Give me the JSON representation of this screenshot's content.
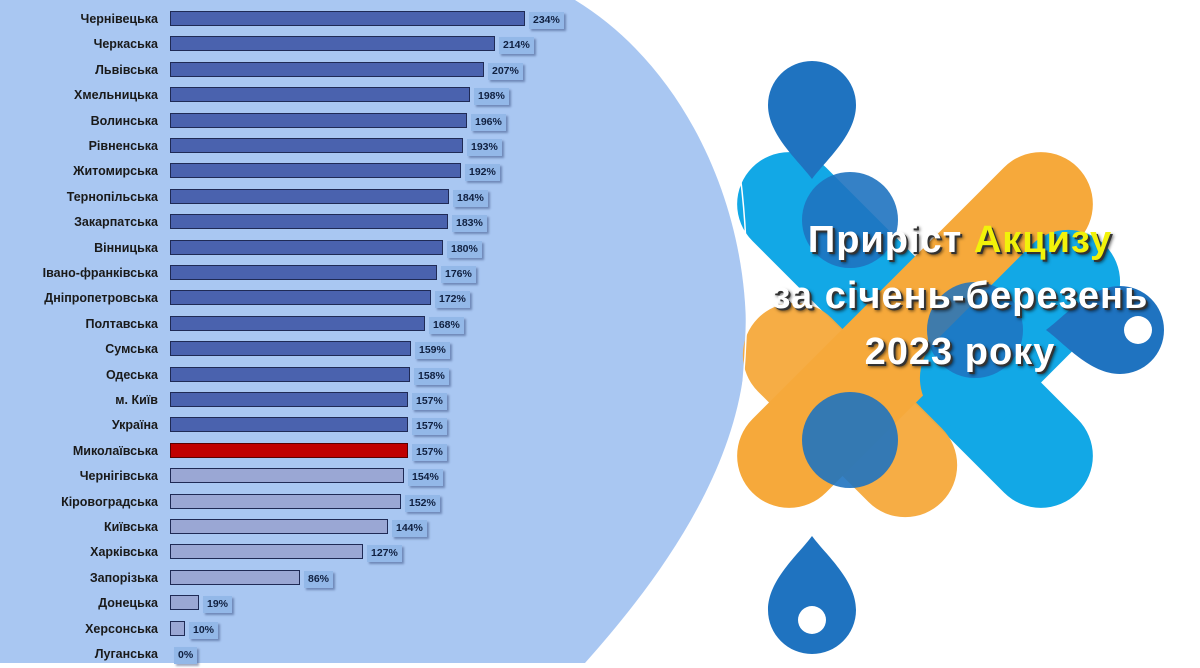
{
  "title": {
    "line1_prefix": "Приріст ",
    "line1_highlight": "Акцизу",
    "line2": "за січень-березень",
    "line3": "2023 року"
  },
  "colors": {
    "bar_above_avg": "#4a62ae",
    "bar_below_avg": "#9aa7d4",
    "bar_highlight": "#c00000",
    "label_box": "#93b8e8",
    "panel_bg": "#a9c7f2",
    "title_highlight": "#f2f20a",
    "logo_dark_blue": "#1f73c0",
    "logo_light_blue": "#12a8e6",
    "logo_orange": "#f6a93b"
  },
  "chart_data": {
    "type": "bar",
    "orientation": "horizontal",
    "title": "Приріст Акцизу за січень-березень 2023 року",
    "xlabel": "",
    "ylabel": "",
    "value_suffix": "%",
    "grid": false,
    "legend": null,
    "highlight": "Миколаївська",
    "categories": [
      "Чернівецька",
      "Черкаська",
      "Львівська",
      "Хмельницька",
      "Волинська",
      "Рівненська",
      "Житомирська",
      "Тернопільська",
      "Закарпатська",
      "Вінницька",
      "Івано-франківська",
      "Дніпропетровська",
      "Полтавська",
      "Сумська",
      "Одеська",
      "м. Київ",
      "Україна",
      "Миколаївська",
      "Чернігівська",
      "Кіровоградська",
      "Київська",
      "Харківська",
      "Запорізька",
      "Донецька",
      "Херсонська",
      "Луганська"
    ],
    "values": [
      234,
      214,
      207,
      198,
      196,
      193,
      192,
      184,
      183,
      180,
      176,
      172,
      168,
      159,
      158,
      157,
      157,
      157,
      154,
      152,
      144,
      127,
      86,
      19,
      10,
      0
    ],
    "styles": [
      "dark",
      "dark",
      "dark",
      "dark",
      "dark",
      "dark",
      "dark",
      "dark",
      "dark",
      "dark",
      "dark",
      "dark",
      "dark",
      "dark",
      "dark",
      "dark",
      "dark",
      "red",
      "light",
      "light",
      "light",
      "light",
      "light",
      "light",
      "light",
      "light"
    ]
  }
}
